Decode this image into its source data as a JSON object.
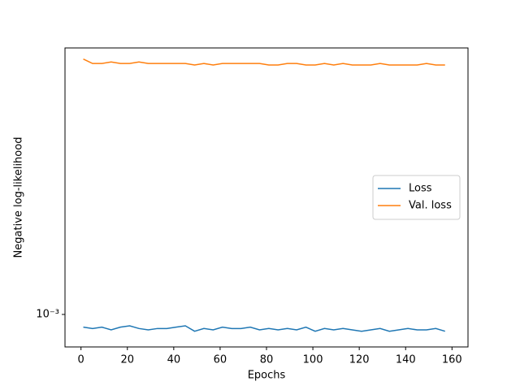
{
  "chart_data": {
    "type": "line",
    "title": null,
    "x_label": "Epochs",
    "y_label": "Negative log-likelihood",
    "x": [
      1,
      5,
      9,
      13,
      17,
      21,
      25,
      29,
      33,
      37,
      41,
      45,
      49,
      53,
      57,
      61,
      65,
      69,
      73,
      77,
      81,
      85,
      89,
      93,
      97,
      101,
      105,
      109,
      113,
      117,
      121,
      125,
      129,
      133,
      137,
      141,
      145,
      149,
      153,
      157
    ],
    "series": [
      {
        "name": "Loss",
        "color": "#1f77b4",
        "values": [
          0.0009,
          0.00089,
          0.0009,
          0.00088,
          0.0009,
          0.00091,
          0.00089,
          0.00088,
          0.00089,
          0.00089,
          0.0009,
          0.00091,
          0.00087,
          0.00089,
          0.00088,
          0.0009,
          0.00089,
          0.00089,
          0.0009,
          0.00088,
          0.00089,
          0.00088,
          0.00089,
          0.00088,
          0.0009,
          0.00087,
          0.00089,
          0.00088,
          0.00089,
          0.00088,
          0.00087,
          0.00088,
          0.00089,
          0.00087,
          0.00088,
          0.00089,
          0.00088,
          0.00088,
          0.00089,
          0.00087
        ]
      },
      {
        "name": "Val. loss",
        "color": "#ff7f0e",
        "values": [
          0.0083,
          0.008,
          0.008,
          0.0081,
          0.008,
          0.008,
          0.0081,
          0.008,
          0.008,
          0.008,
          0.008,
          0.008,
          0.0079,
          0.008,
          0.0079,
          0.008,
          0.008,
          0.008,
          0.008,
          0.008,
          0.0079,
          0.0079,
          0.008,
          0.008,
          0.0079,
          0.0079,
          0.008,
          0.0079,
          0.008,
          0.0079,
          0.0079,
          0.0079,
          0.008,
          0.0079,
          0.0079,
          0.0079,
          0.0079,
          0.008,
          0.0079,
          0.0079
        ]
      }
    ],
    "xlim": [
      -6.9,
      166.9
    ],
    "xticks": [
      0,
      20,
      40,
      60,
      80,
      100,
      120,
      140,
      160
    ],
    "ylim": [
      0.000764,
      0.0091
    ],
    "yticks": [
      {
        "value": 0.001,
        "label": "10⁻³"
      }
    ],
    "log_y": true,
    "grid": false,
    "legend": "center right"
  }
}
